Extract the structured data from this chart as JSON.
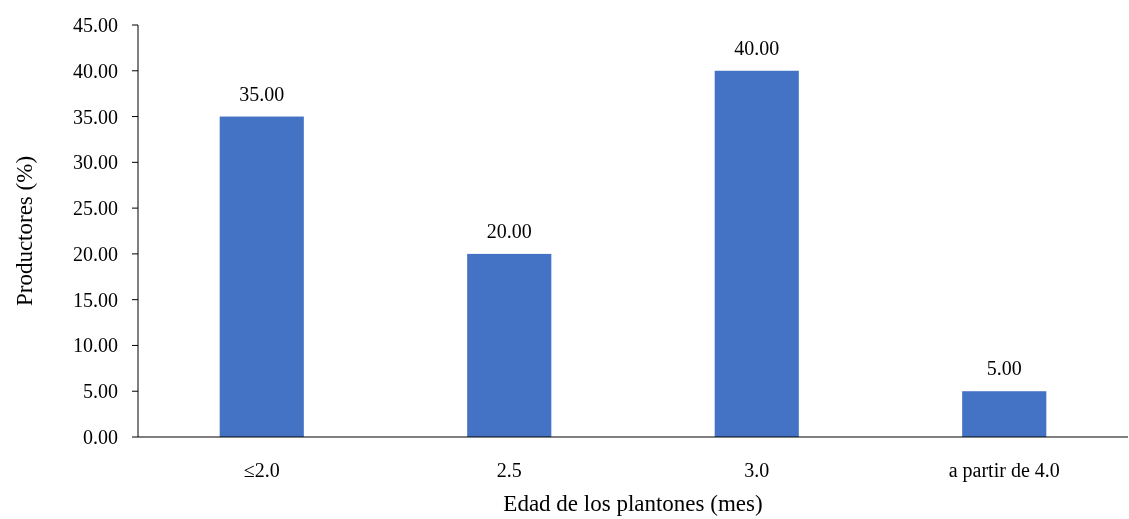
{
  "chart_data": {
    "type": "bar",
    "xlabel": "Edad de los plantones (mes)",
    "ylabel": "Productores (%)",
    "categories": [
      "≤2.0",
      "2.5",
      "3.0",
      "a partir de 4.0"
    ],
    "values": [
      35,
      20,
      40,
      5
    ],
    "value_labels": [
      "35.00",
      "20.00",
      "40.00",
      "5.00"
    ],
    "color": "#4472c4",
    "ylim": [
      0,
      45
    ],
    "yticks": [
      {
        "value": 0,
        "label": "0.00"
      },
      {
        "value": 5,
        "label": "5.00"
      },
      {
        "value": 10,
        "label": "10.00"
      },
      {
        "value": 15,
        "label": "15.00"
      },
      {
        "value": 20,
        "label": "20.00"
      },
      {
        "value": 25,
        "label": "25.00"
      },
      {
        "value": 30,
        "label": "30.00"
      },
      {
        "value": 35,
        "label": "35.00"
      },
      {
        "value": 40,
        "label": "40.00"
      },
      {
        "value": 45,
        "label": "45.00"
      }
    ],
    "grid": false
  }
}
